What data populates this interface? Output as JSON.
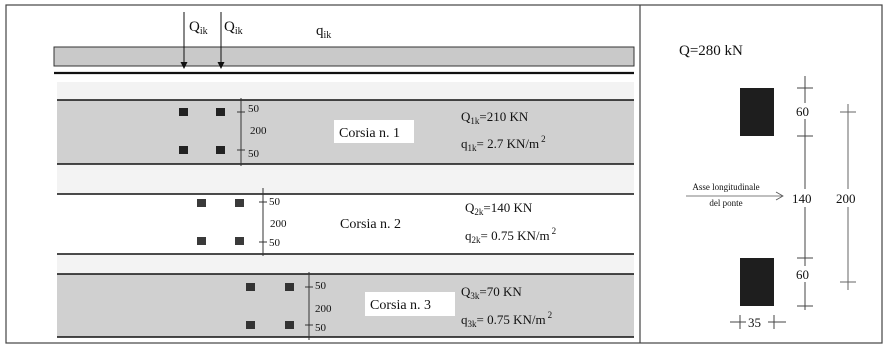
{
  "left_panel": {
    "top_labels": {
      "point_load_a": {
        "main": "Q",
        "sub": "ik"
      },
      "point_load_b": {
        "main": "Q",
        "sub": "ik"
      },
      "distributed_load": {
        "main": "q",
        "sub": "ik"
      }
    },
    "lanes": [
      {
        "name": "Corsia n. 1",
        "dims": [
          "50",
          "200",
          "50"
        ],
        "Q": {
          "main": "Q",
          "sub": "1k",
          "rest": "=210 KN"
        },
        "q": {
          "main": "q",
          "sub": "1k",
          "rest": "= 2.7 KN/m",
          "sup": "2"
        },
        "fill": "#d0d0d0"
      },
      {
        "name": "Corsia n. 2",
        "dims": [
          "50",
          "200",
          "50"
        ],
        "Q": {
          "main": "Q",
          "sub": "2k",
          "rest": "=140 KN"
        },
        "q": {
          "main": "q",
          "sub": "2k",
          "rest": "= 0.75 KN/m",
          "sup": "2"
        },
        "fill": "#f3f3f3"
      },
      {
        "name": "Corsia n. 3",
        "dims": [
          "50",
          "200",
          "50"
        ],
        "Q": {
          "main": "Q",
          "sub": "3k",
          "rest": "=70 KN"
        },
        "q": {
          "main": "q",
          "sub": "3k",
          "rest": "= 0.75 KN/m",
          "sup": "2"
        },
        "fill": "#d0d0d0"
      }
    ],
    "colors": {
      "grey_lane": "#d0d0d0",
      "light_lane": "#f3f3f3",
      "wheel": "#222222",
      "frame": "#444444"
    }
  },
  "right_panel": {
    "title": "Q=280 kN",
    "axis_label_line1": "Asse longitudinale",
    "axis_label_line2": "del ponte",
    "dim_top": "60",
    "dim_mid": "140",
    "dim_total": "200",
    "dim_bottom": "60",
    "dim_width": "35"
  }
}
